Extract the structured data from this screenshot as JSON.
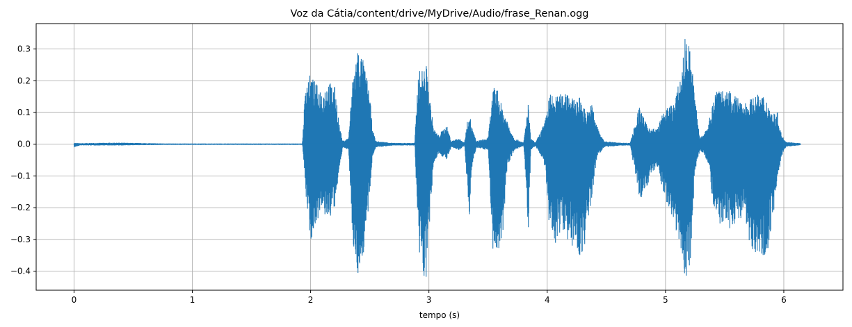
{
  "chart_data": {
    "type": "line",
    "title": "Voz da Cátia/content/drive/MyDrive/Audio/frase_Renan.ogg",
    "xlabel": "tempo (s)",
    "ylabel": "",
    "xlim": [
      -0.32,
      6.5
    ],
    "ylim": [
      -0.46,
      0.38
    ],
    "xticks": [
      0,
      1,
      2,
      3,
      4,
      5,
      6
    ],
    "yticks": [
      -0.4,
      -0.3,
      -0.2,
      -0.1,
      0.0,
      0.1,
      0.2,
      0.3
    ],
    "xtick_labels": [
      "0",
      "1",
      "2",
      "3",
      "4",
      "5",
      "6"
    ],
    "ytick_labels": [
      "−0.4",
      "−0.3",
      "−0.2",
      "−0.1",
      "0.0",
      "0.1",
      "0.2",
      "0.3"
    ],
    "grid": true,
    "series_color": "#1f77b4",
    "duration": 6.14,
    "envelope": [
      [
        0.0,
        0.004,
        -0.01
      ],
      [
        0.05,
        0.003,
        -0.004
      ],
      [
        0.35,
        0.005,
        -0.004
      ],
      [
        0.8,
        0.002,
        -0.002
      ],
      [
        1.5,
        0.002,
        -0.002
      ],
      [
        1.93,
        0.002,
        -0.002
      ],
      [
        1.96,
        0.21,
        -0.17
      ],
      [
        2.0,
        0.22,
        -0.31
      ],
      [
        2.05,
        0.19,
        -0.24
      ],
      [
        2.1,
        0.17,
        -0.22
      ],
      [
        2.15,
        0.2,
        -0.24
      ],
      [
        2.21,
        0.18,
        -0.2
      ],
      [
        2.24,
        0.07,
        -0.08
      ],
      [
        2.27,
        0.01,
        -0.01
      ],
      [
        2.32,
        0.02,
        -0.02
      ],
      [
        2.36,
        0.23,
        -0.34
      ],
      [
        2.4,
        0.31,
        -0.42
      ],
      [
        2.45,
        0.26,
        -0.34
      ],
      [
        2.5,
        0.16,
        -0.17
      ],
      [
        2.52,
        0.06,
        -0.04
      ],
      [
        2.55,
        0.01,
        -0.01
      ],
      [
        2.7,
        0.004,
        -0.004
      ],
      [
        2.88,
        0.004,
        -0.004
      ],
      [
        2.91,
        0.23,
        -0.36
      ],
      [
        2.95,
        0.24,
        -0.42
      ],
      [
        2.98,
        0.25,
        -0.43
      ],
      [
        3.01,
        0.14,
        -0.22
      ],
      [
        3.04,
        0.05,
        -0.06
      ],
      [
        3.08,
        0.03,
        -0.03
      ],
      [
        3.15,
        0.06,
        -0.05
      ],
      [
        3.19,
        0.01,
        -0.01
      ],
      [
        3.25,
        0.02,
        -0.02
      ],
      [
        3.3,
        0.005,
        -0.005
      ],
      [
        3.34,
        0.11,
        -0.24
      ],
      [
        3.36,
        0.06,
        -0.08
      ],
      [
        3.4,
        0.01,
        -0.01
      ],
      [
        3.5,
        0.02,
        -0.02
      ],
      [
        3.54,
        0.17,
        -0.34
      ],
      [
        3.57,
        0.19,
        -0.34
      ],
      [
        3.61,
        0.13,
        -0.37
      ],
      [
        3.66,
        0.08,
        -0.07
      ],
      [
        3.72,
        0.02,
        -0.02
      ],
      [
        3.8,
        0.005,
        -0.005
      ],
      [
        3.84,
        0.13,
        -0.28
      ],
      [
        3.86,
        0.02,
        -0.02
      ],
      [
        3.9,
        0.005,
        -0.005
      ],
      [
        3.98,
        0.07,
        -0.07
      ],
      [
        4.02,
        0.16,
        -0.3
      ],
      [
        4.07,
        0.15,
        -0.32
      ],
      [
        4.12,
        0.16,
        -0.26
      ],
      [
        4.17,
        0.18,
        -0.3
      ],
      [
        4.22,
        0.14,
        -0.33
      ],
      [
        4.28,
        0.15,
        -0.36
      ],
      [
        4.33,
        0.1,
        -0.3
      ],
      [
        4.38,
        0.13,
        -0.16
      ],
      [
        4.42,
        0.06,
        -0.04
      ],
      [
        4.48,
        0.01,
        -0.01
      ],
      [
        4.6,
        0.005,
        -0.005
      ],
      [
        4.7,
        0.004,
        -0.004
      ],
      [
        4.78,
        0.12,
        -0.18
      ],
      [
        4.83,
        0.07,
        -0.14
      ],
      [
        4.88,
        0.05,
        -0.1
      ],
      [
        4.93,
        0.05,
        -0.07
      ],
      [
        4.98,
        0.1,
        -0.16
      ],
      [
        5.03,
        0.12,
        -0.2
      ],
      [
        5.08,
        0.14,
        -0.26
      ],
      [
        5.13,
        0.22,
        -0.33
      ],
      [
        5.17,
        0.35,
        -0.46
      ],
      [
        5.21,
        0.3,
        -0.36
      ],
      [
        5.25,
        0.15,
        -0.08
      ],
      [
        5.29,
        0.02,
        -0.02
      ],
      [
        5.32,
        0.04,
        -0.03
      ],
      [
        5.36,
        0.05,
        -0.06
      ],
      [
        5.4,
        0.15,
        -0.2
      ],
      [
        5.45,
        0.2,
        -0.26
      ],
      [
        5.5,
        0.16,
        -0.24
      ],
      [
        5.55,
        0.17,
        -0.28
      ],
      [
        5.6,
        0.15,
        -0.24
      ],
      [
        5.65,
        0.13,
        -0.23
      ],
      [
        5.7,
        0.14,
        -0.32
      ],
      [
        5.75,
        0.15,
        -0.34
      ],
      [
        5.8,
        0.16,
        -0.34
      ],
      [
        5.85,
        0.15,
        -0.36
      ],
      [
        5.9,
        0.1,
        -0.26
      ],
      [
        5.95,
        0.1,
        -0.1
      ],
      [
        5.98,
        0.03,
        -0.04
      ],
      [
        6.02,
        0.008,
        -0.008
      ],
      [
        6.14,
        0.003,
        -0.003
      ]
    ]
  }
}
